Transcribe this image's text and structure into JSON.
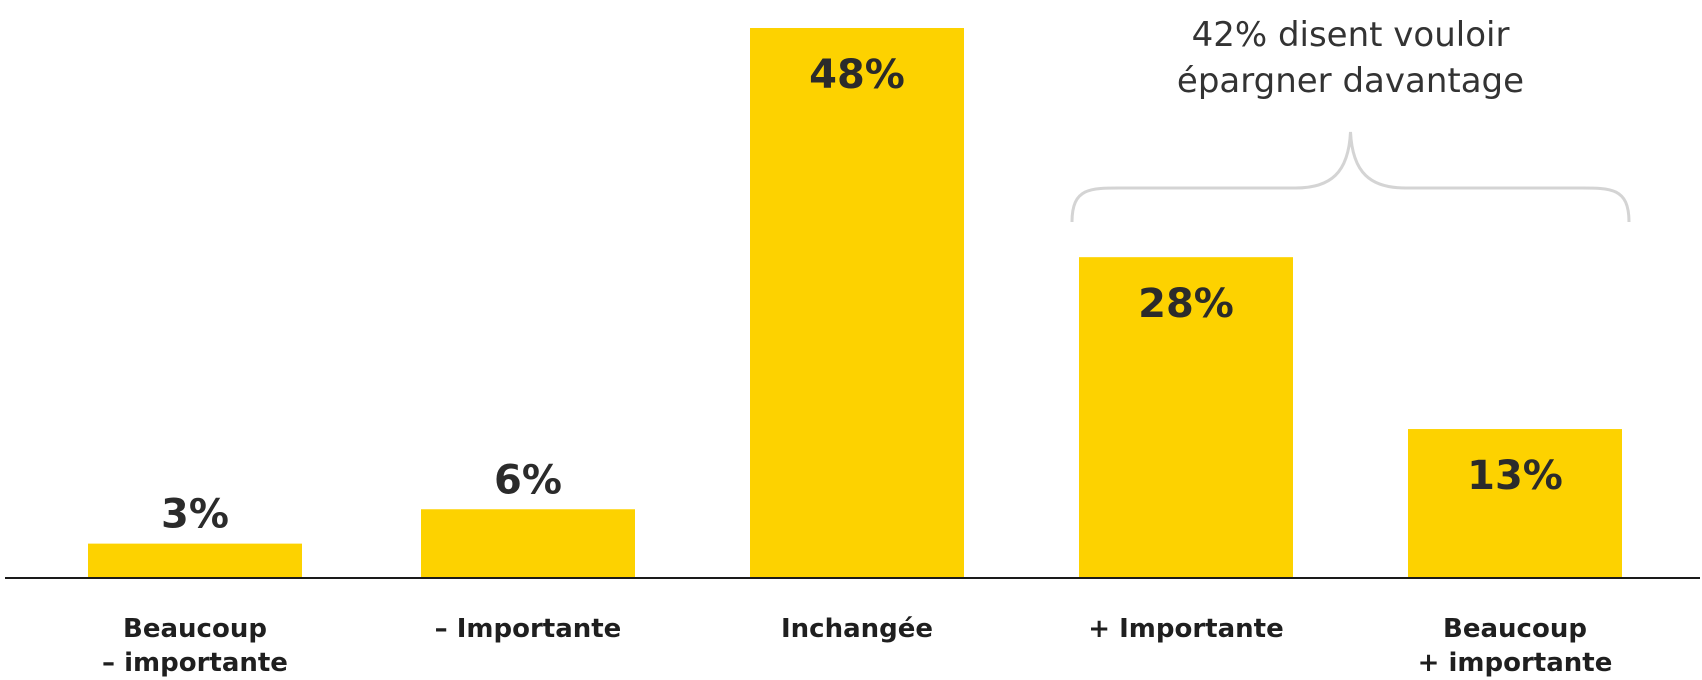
{
  "chart_data": {
    "type": "bar",
    "categories": [
      [
        "Beaucoup",
        "– importante"
      ],
      [
        "– Importante"
      ],
      [
        "Inchangée"
      ],
      [
        "+ Importante"
      ],
      [
        "Beaucoup",
        "+ importante"
      ]
    ],
    "values": [
      3,
      6,
      48,
      28,
      13
    ],
    "value_labels": [
      "3%",
      "6%",
      "48%",
      "28%",
      "13%"
    ],
    "ylim": [
      0,
      48
    ],
    "bar_color": "#FDD200",
    "annotation": {
      "lines": [
        "42% disent vouloir",
        "épargner davantage"
      ],
      "spans_categories": [
        3,
        4
      ]
    },
    "title": "",
    "xlabel": "",
    "ylabel": "",
    "grid": false,
    "legend": "none"
  }
}
